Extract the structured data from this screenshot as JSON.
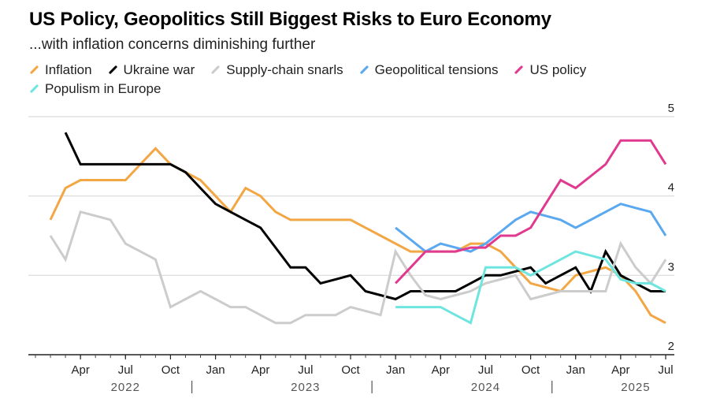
{
  "chart_data": {
    "type": "line",
    "title": "US Policy, Geopolitics Still Biggest Risks to Euro Economy",
    "subtitle": "...with inflation concerns diminishing further",
    "legend_placement": "top-left",
    "grid": true,
    "ylim": [
      2,
      5
    ],
    "yticks": [
      2,
      3,
      4,
      5
    ],
    "xlim": [
      "2022-01",
      "2025-07"
    ],
    "x_ticks": [
      {
        "x": "2022-04",
        "label": "Apr"
      },
      {
        "x": "2022-07",
        "label": "Jul"
      },
      {
        "x": "2022-10",
        "label": "Oct"
      },
      {
        "x": "2023-01",
        "label": "Jan"
      },
      {
        "x": "2023-04",
        "label": "Apr"
      },
      {
        "x": "2023-07",
        "label": "Jul"
      },
      {
        "x": "2023-10",
        "label": "Oct"
      },
      {
        "x": "2024-01",
        "label": "Jan"
      },
      {
        "x": "2024-04",
        "label": "Apr"
      },
      {
        "x": "2024-07",
        "label": "Jul"
      },
      {
        "x": "2024-10",
        "label": "Oct"
      },
      {
        "x": "2025-01",
        "label": "Jan"
      },
      {
        "x": "2025-04",
        "label": "Apr"
      },
      {
        "x": "2025-07",
        "label": "Jul"
      }
    ],
    "year_labels": [
      {
        "x": "2022-07",
        "label": "2022"
      },
      {
        "x": "2023-07",
        "label": "2023"
      },
      {
        "x": "2024-07",
        "label": "2024"
      },
      {
        "x": "2025-05",
        "label": "2025"
      }
    ],
    "year_separators": [
      "2023-01",
      "2024-01",
      "2025-01"
    ],
    "series": [
      {
        "name": "Inflation",
        "color": "#f2a644",
        "x": [
          "2022-02",
          "2022-03",
          "2022-04",
          "2022-05",
          "2022-06",
          "2022-07",
          "2022-08",
          "2022-09",
          "2022-10",
          "2022-11",
          "2022-12",
          "2023-01",
          "2023-02",
          "2023-03",
          "2023-04",
          "2023-05",
          "2023-06",
          "2023-07",
          "2023-08",
          "2023-09",
          "2023-10",
          "2023-11",
          "2023-12",
          "2024-01",
          "2024-02",
          "2024-03",
          "2024-04",
          "2024-05",
          "2024-06",
          "2024-07",
          "2024-08",
          "2024-09",
          "2024-10",
          "2024-11",
          "2024-12",
          "2025-01",
          "2025-02",
          "2025-03",
          "2025-04",
          "2025-05",
          "2025-06",
          "2025-07"
        ],
        "y": [
          3.7,
          4.1,
          4.2,
          4.2,
          4.2,
          4.2,
          4.4,
          4.6,
          4.4,
          4.3,
          4.2,
          4.0,
          3.8,
          4.1,
          4.0,
          3.8,
          3.7,
          3.7,
          3.7,
          3.7,
          3.7,
          3.6,
          3.5,
          3.4,
          3.3,
          3.3,
          3.3,
          3.3,
          3.4,
          3.4,
          3.3,
          3.1,
          2.9,
          2.85,
          2.8,
          3.0,
          3.05,
          3.1,
          3.0,
          2.8,
          2.5,
          2.4
        ]
      },
      {
        "name": "Ukraine war",
        "color": "#000000",
        "x": [
          "2022-03",
          "2022-04",
          "2022-05",
          "2022-06",
          "2022-07",
          "2022-08",
          "2022-09",
          "2022-10",
          "2022-11",
          "2022-12",
          "2023-01",
          "2023-02",
          "2023-03",
          "2023-04",
          "2023-05",
          "2023-06",
          "2023-07",
          "2023-08",
          "2023-09",
          "2023-10",
          "2023-11",
          "2023-12",
          "2024-01",
          "2024-02",
          "2024-03",
          "2024-04",
          "2024-05",
          "2024-06",
          "2024-07",
          "2024-08",
          "2024-09",
          "2024-10",
          "2024-11",
          "2024-12",
          "2025-01",
          "2025-02",
          "2025-03",
          "2025-04",
          "2025-05",
          "2025-06",
          "2025-07"
        ],
        "y": [
          4.8,
          4.4,
          4.4,
          4.4,
          4.4,
          4.4,
          4.4,
          4.4,
          4.3,
          4.1,
          3.9,
          3.8,
          3.7,
          3.6,
          3.35,
          3.1,
          3.1,
          2.9,
          2.95,
          3.0,
          2.8,
          2.75,
          2.7,
          2.8,
          2.8,
          2.8,
          2.8,
          2.9,
          3.0,
          3.0,
          3.05,
          3.1,
          2.9,
          3.0,
          3.1,
          2.8,
          3.3,
          3.0,
          2.9,
          2.8,
          2.8
        ]
      },
      {
        "name": "Supply-chain snarls",
        "color": "#cccccc",
        "x": [
          "2022-02",
          "2022-03",
          "2022-04",
          "2022-05",
          "2022-06",
          "2022-07",
          "2022-08",
          "2022-09",
          "2022-10",
          "2022-11",
          "2022-12",
          "2023-01",
          "2023-02",
          "2023-03",
          "2023-04",
          "2023-05",
          "2023-06",
          "2023-07",
          "2023-08",
          "2023-09",
          "2023-10",
          "2023-11",
          "2023-12",
          "2024-01",
          "2024-02",
          "2024-03",
          "2024-04",
          "2024-05",
          "2024-06",
          "2024-07",
          "2024-08",
          "2024-09",
          "2024-10",
          "2024-11",
          "2024-12",
          "2025-01",
          "2025-02",
          "2025-03",
          "2025-04",
          "2025-05",
          "2025-06",
          "2025-07"
        ],
        "y": [
          3.5,
          3.2,
          3.8,
          3.75,
          3.7,
          3.4,
          3.3,
          3.2,
          2.6,
          2.7,
          2.8,
          2.7,
          2.6,
          2.6,
          2.5,
          2.4,
          2.4,
          2.5,
          2.5,
          2.5,
          2.6,
          2.55,
          2.5,
          3.3,
          3.0,
          2.75,
          2.7,
          2.75,
          2.8,
          2.9,
          2.95,
          3.0,
          2.7,
          2.75,
          2.8,
          2.8,
          2.8,
          2.8,
          3.4,
          3.1,
          2.9,
          3.2
        ]
      },
      {
        "name": "Geopolitical tensions",
        "color": "#5aa8f0",
        "x": [
          "2024-01",
          "2024-02",
          "2024-03",
          "2024-04",
          "2024-05",
          "2024-06",
          "2024-07",
          "2024-08",
          "2024-09",
          "2024-10",
          "2024-11",
          "2024-12",
          "2025-01",
          "2025-02",
          "2025-03",
          "2025-04",
          "2025-05",
          "2025-06",
          "2025-07"
        ],
        "y": [
          3.6,
          3.45,
          3.3,
          3.4,
          3.35,
          3.3,
          3.4,
          3.55,
          3.7,
          3.8,
          3.75,
          3.7,
          3.6,
          3.7,
          3.8,
          3.9,
          3.85,
          3.8,
          3.5
        ]
      },
      {
        "name": "US policy",
        "color": "#e0398f",
        "x": [
          "2024-01",
          "2024-02",
          "2024-03",
          "2024-04",
          "2024-05",
          "2024-06",
          "2024-07",
          "2024-08",
          "2024-09",
          "2024-10",
          "2024-11",
          "2024-12",
          "2025-01",
          "2025-02",
          "2025-03",
          "2025-04",
          "2025-05",
          "2025-06",
          "2025-07"
        ],
        "y": [
          2.9,
          3.1,
          3.3,
          3.3,
          3.3,
          3.35,
          3.35,
          3.5,
          3.5,
          3.6,
          3.9,
          4.2,
          4.1,
          4.25,
          4.4,
          4.7,
          4.7,
          4.7,
          4.4
        ]
      },
      {
        "name": "Populism in Europe",
        "color": "#6fe5df",
        "x": [
          "2024-01",
          "2024-02",
          "2024-03",
          "2024-04",
          "2024-05",
          "2024-06",
          "2024-07",
          "2024-08",
          "2024-09",
          "2024-10",
          "2024-11",
          "2024-12",
          "2025-01",
          "2025-02",
          "2025-03",
          "2025-04",
          "2025-05",
          "2025-06",
          "2025-07"
        ],
        "y": [
          2.6,
          2.6,
          2.6,
          2.6,
          2.5,
          2.4,
          3.1,
          3.1,
          3.1,
          3.0,
          3.1,
          3.2,
          3.3,
          3.25,
          3.2,
          2.95,
          2.9,
          2.9,
          2.8
        ]
      }
    ]
  }
}
